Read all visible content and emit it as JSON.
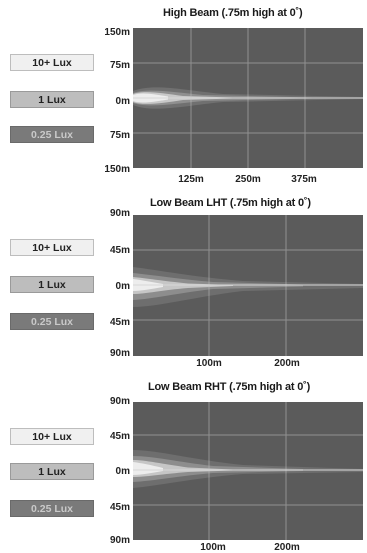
{
  "colors": {
    "plot_background": "#5b5b5b",
    "grid_line": "#bdbdbd",
    "zone_10_lux": "#f0f0f0",
    "zone_1_lux": "#bdbdbd",
    "zone_025_lux": "#7a7a7a"
  },
  "panels": [
    {
      "title": "High Beam (.75m high at 0˚)",
      "y_labels": [
        "150m",
        "75m",
        "0m",
        "75m",
        "150m"
      ],
      "x_labels": [
        "125m",
        "250m",
        "375m"
      ],
      "legend": [
        "10+ Lux",
        "1 Lux",
        "0.25 Lux"
      ]
    },
    {
      "title": "Low Beam LHT (.75m high at 0˚)",
      "y_labels": [
        "90m",
        "45m",
        "0m",
        "45m",
        "90m"
      ],
      "x_labels": [
        "100m",
        "200m"
      ],
      "legend": [
        "10+ Lux",
        "1 Lux",
        "0.25 Lux"
      ]
    },
    {
      "title": "Low Beam RHT (.75m high at 0˚)",
      "y_labels": [
        "90m",
        "45m",
        "0m",
        "45m",
        "90m"
      ],
      "x_labels": [
        "100m",
        "200m"
      ],
      "legend": [
        "10+ Lux",
        "1 Lux",
        "0.25 Lux"
      ]
    }
  ]
}
